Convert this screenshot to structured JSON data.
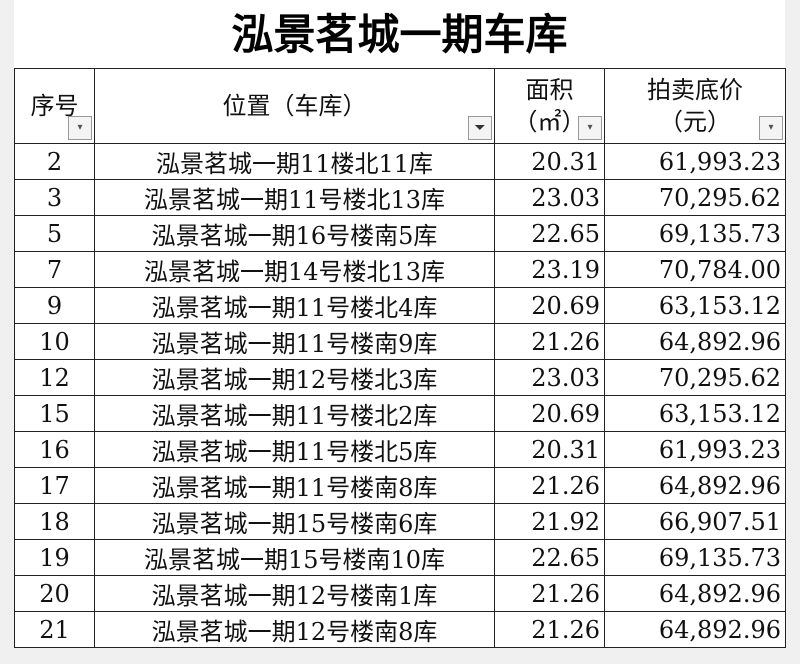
{
  "title": "泓景茗城一期车库",
  "headers": [
    {
      "lines": [
        "序号"
      ],
      "filter": "dropdown"
    },
    {
      "lines": [
        "位置（车库）"
      ],
      "filter": "filter-active"
    },
    {
      "lines": [
        "面积",
        "（㎡）"
      ],
      "filter": "dropdown"
    },
    {
      "lines": [
        "拍卖底价",
        "（元）"
      ],
      "filter": "dropdown"
    }
  ],
  "rows": [
    [
      "2",
      "泓景茗城一期11楼北11库",
      "20.31",
      "61,993.23"
    ],
    [
      "3",
      "泓景茗城一期11号楼北13库",
      "23.03",
      "70,295.62"
    ],
    [
      "5",
      "泓景茗城一期16号楼南5库",
      "22.65",
      "69,135.73"
    ],
    [
      "7",
      "泓景茗城一期14号楼北13库",
      "23.19",
      "70,784.00"
    ],
    [
      "9",
      "泓景茗城一期11号楼北4库",
      "20.69",
      "63,153.12"
    ],
    [
      "10",
      "泓景茗城一期11号楼南9库",
      "21.26",
      "64,892.96"
    ],
    [
      "12",
      "泓景茗城一期12号楼北3库",
      "23.03",
      "70,295.62"
    ],
    [
      "15",
      "泓景茗城一期11号楼北2库",
      "20.69",
      "63,153.12"
    ],
    [
      "16",
      "泓景茗城一期11号楼北5库",
      "20.31",
      "61,993.23"
    ],
    [
      "17",
      "泓景茗城一期11号楼南8库",
      "21.26",
      "64,892.96"
    ],
    [
      "18",
      "泓景茗城一期15号楼南6库",
      "21.92",
      "66,907.51"
    ],
    [
      "19",
      "泓景茗城一期15号楼南10库",
      "22.65",
      "69,135.73"
    ],
    [
      "20",
      "泓景茗城一期12号楼南1库",
      "21.26",
      "64,892.96"
    ],
    [
      "21",
      "泓景茗城一期12号楼南8库",
      "21.26",
      "64,892.96"
    ]
  ]
}
